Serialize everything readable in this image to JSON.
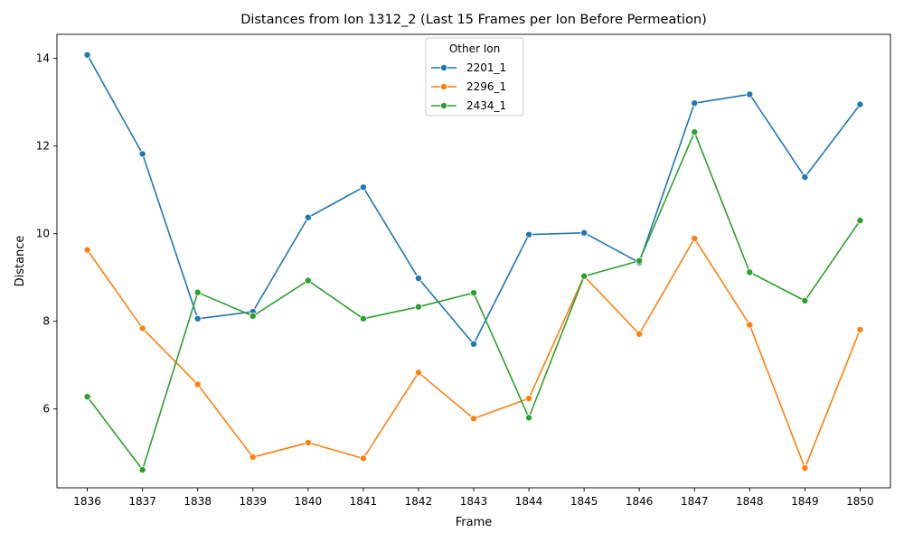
{
  "chart_data": {
    "type": "line",
    "title": "Distances from Ion 1312_2 (Last 15 Frames per Ion Before Permeation)",
    "xlabel": "Frame",
    "ylabel": "Distance",
    "x": [
      1836,
      1837,
      1838,
      1839,
      1840,
      1841,
      1842,
      1843,
      1844,
      1845,
      1846,
      1847,
      1848,
      1849,
      1850
    ],
    "ylim": [
      4.2,
      14.55
    ],
    "yticks": [
      6,
      8,
      10,
      12,
      14
    ],
    "grid": false,
    "legend": {
      "title": "Other Ion",
      "placement": "top-center"
    },
    "series": [
      {
        "name": "2201_1",
        "color": "#1f77b4",
        "values": [
          14.08,
          11.82,
          8.06,
          8.22,
          10.37,
          11.06,
          8.98,
          7.48,
          9.98,
          10.02,
          9.34,
          12.98,
          13.18,
          11.29,
          12.95
        ]
      },
      {
        "name": "2296_1",
        "color": "#ff7f0e",
        "values": [
          9.63,
          7.84,
          6.56,
          4.9,
          5.23,
          4.87,
          6.83,
          5.78,
          6.24,
          9.03,
          7.71,
          9.89,
          7.92,
          4.65,
          7.81
        ]
      },
      {
        "name": "2434_1",
        "color": "#2ca02c",
        "values": [
          6.28,
          4.61,
          8.66,
          8.12,
          8.93,
          8.06,
          8.33,
          8.65,
          5.8,
          9.03,
          9.38,
          12.32,
          9.12,
          8.47,
          10.3
        ]
      }
    ]
  }
}
